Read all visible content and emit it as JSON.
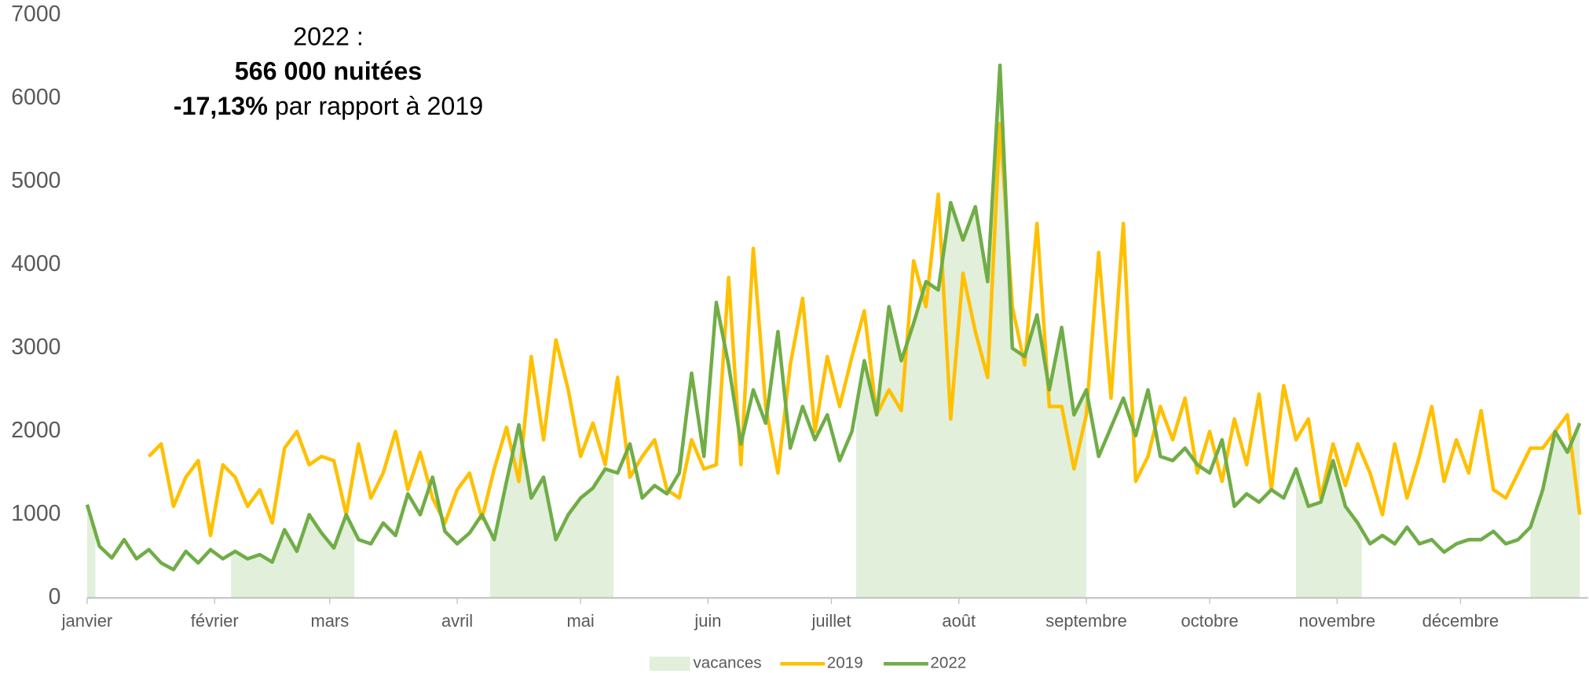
{
  "chart_data": {
    "type": "line",
    "annotation": {
      "line1": "2022 :",
      "line2": "566 000 nuitées",
      "line3_bold": "-17,13%",
      "line3_rest": "par rapport à 2019"
    },
    "x": [
      1,
      4,
      7,
      10,
      13,
      16,
      19,
      22,
      25,
      28,
      31,
      34,
      37,
      40,
      43,
      46,
      49,
      52,
      55,
      58,
      61,
      64,
      67,
      70,
      73,
      76,
      79,
      82,
      85,
      88,
      91,
      94,
      97,
      100,
      103,
      106,
      109,
      112,
      115,
      118,
      121,
      124,
      127,
      130,
      133,
      136,
      139,
      142,
      145,
      148,
      151,
      154,
      157,
      160,
      163,
      166,
      169,
      172,
      175,
      178,
      181,
      184,
      187,
      190,
      193,
      196,
      199,
      202,
      205,
      208,
      211,
      214,
      217,
      220,
      223,
      226,
      229,
      232,
      235,
      238,
      241,
      244,
      247,
      250,
      253,
      256,
      259,
      262,
      265,
      268,
      271,
      274,
      277,
      280,
      283,
      286,
      289,
      292,
      295,
      298,
      301,
      304,
      307,
      310,
      313,
      316,
      319,
      322,
      325,
      328,
      331,
      334,
      337,
      340,
      343,
      346,
      349,
      352,
      355,
      358,
      361,
      364
    ],
    "series": [
      {
        "name": "2019",
        "color": "#ffc000",
        "values": [
          null,
          null,
          null,
          null,
          null,
          1700,
          1850,
          1100,
          1450,
          1650,
          750,
          1600,
          1450,
          1100,
          1300,
          900,
          1800,
          2000,
          1600,
          1700,
          1650,
          1000,
          1850,
          1200,
          1500,
          2000,
          1300,
          1750,
          1200,
          900,
          1300,
          1500,
          950,
          1550,
          2050,
          1400,
          2900,
          1900,
          3100,
          2500,
          1700,
          2100,
          1600,
          2650,
          1450,
          1700,
          1900,
          1300,
          1200,
          1900,
          1550,
          1600,
          3850,
          1600,
          4200,
          2300,
          1500,
          2800,
          3600,
          2000,
          2900,
          2300,
          2900,
          3450,
          2200,
          2500,
          2250,
          4050,
          3500,
          4850,
          2150,
          3900,
          3200,
          2650,
          5700,
          3500,
          2800,
          4500,
          2300,
          2300,
          1550,
          2200,
          4150,
          2400,
          4500,
          1400,
          1700,
          2300,
          1900,
          2400,
          1500,
          2000,
          1400,
          2150,
          1600,
          2450,
          1300,
          2550,
          1900,
          2150,
          1200,
          1850,
          1350,
          1850,
          1500,
          1000,
          1850,
          1200,
          1700,
          2300,
          1400,
          1900,
          1500,
          2250,
          1300,
          1200,
          1500,
          1800,
          1800,
          2000,
          2200,
          1000
        ]
      },
      {
        "name": "2022",
        "color": "#70ad47",
        "values": [
          1120,
          620,
          480,
          700,
          470,
          580,
          420,
          340,
          560,
          420,
          580,
          470,
          560,
          470,
          520,
          430,
          820,
          560,
          1000,
          780,
          600,
          1000,
          700,
          650,
          900,
          750,
          1250,
          1000,
          1450,
          800,
          650,
          780,
          1000,
          700,
          1400,
          2080,
          1200,
          1450,
          700,
          1000,
          1200,
          1320,
          1550,
          1500,
          1850,
          1200,
          1350,
          1250,
          1500,
          2700,
          1700,
          3550,
          2800,
          1850,
          2500,
          2100,
          3200,
          1800,
          2300,
          1900,
          2200,
          1650,
          2000,
          2850,
          2200,
          3500,
          2850,
          3300,
          3800,
          3700,
          4750,
          4300,
          4700,
          3800,
          6400,
          3000,
          2900,
          3400,
          2500,
          3250,
          2200,
          2500,
          1700,
          2050,
          2400,
          1950,
          2500,
          1700,
          1650,
          1800,
          1600,
          1500,
          1900,
          1100,
          1250,
          1150,
          1300,
          1200,
          1550,
          1100,
          1150,
          1650,
          1100,
          900,
          650,
          750,
          650,
          850,
          650,
          700,
          550,
          650,
          700,
          700,
          800,
          650,
          700,
          850,
          1300,
          2000,
          1750,
          2100
        ]
      }
    ],
    "vacances": {
      "name": "vacances",
      "color": "#e2efda",
      "periods": [
        [
          1,
          3
        ],
        [
          36,
          66
        ],
        [
          99,
          129
        ],
        [
          188,
          244
        ],
        [
          295,
          311
        ],
        [
          352,
          366
        ]
      ]
    },
    "xlim": [
      1,
      366
    ],
    "xticks": [
      {
        "value": 1,
        "label": "janvier"
      },
      {
        "value": 32,
        "label": "février"
      },
      {
        "value": 60,
        "label": "mars"
      },
      {
        "value": 91,
        "label": "avril"
      },
      {
        "value": 121,
        "label": "mai"
      },
      {
        "value": 152,
        "label": "juin"
      },
      {
        "value": 182,
        "label": "juillet"
      },
      {
        "value": 213,
        "label": "août"
      },
      {
        "value": 244,
        "label": "septembre"
      },
      {
        "value": 274,
        "label": "octobre"
      },
      {
        "value": 305,
        "label": "novembre"
      },
      {
        "value": 335,
        "label": "décembre"
      }
    ],
    "ylim": [
      0,
      7000
    ],
    "yticks": [
      0,
      1000,
      2000,
      3000,
      4000,
      5000,
      6000,
      7000
    ],
    "grid": false
  }
}
